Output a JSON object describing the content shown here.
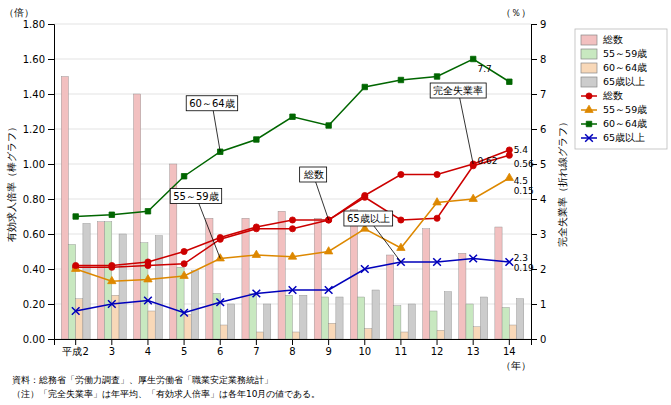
{
  "chart_data": {
    "type": "bar",
    "categories": [
      "平成2",
      "3",
      "4",
      "5",
      "6",
      "7",
      "8",
      "9",
      "10",
      "11",
      "12",
      "13",
      "14"
    ],
    "xlabel": "（年）",
    "ylabel": "有効求人倍率（棒グラフ）",
    "y2label": "完全失業率（折れ線グラフ）",
    "y_unit": "（倍）",
    "y2_unit": "（％）",
    "ylim": [
      0.0,
      1.8
    ],
    "yticks": [
      {
        "value": 0.0,
        "label": "0.00"
      },
      {
        "value": 0.2,
        "label": "0.20"
      },
      {
        "value": 0.4,
        "label": "0.40"
      },
      {
        "value": 0.6,
        "label": "0.60"
      },
      {
        "value": 0.8,
        "label": "0.80"
      },
      {
        "value": 1.0,
        "label": "1.00"
      },
      {
        "value": 1.2,
        "label": "1.20"
      },
      {
        "value": 1.4,
        "label": "1.40"
      },
      {
        "value": 1.6,
        "label": "1.60"
      },
      {
        "value": 1.8,
        "label": "1.80"
      }
    ],
    "y2lim": [
      0,
      9
    ],
    "y2ticks": [
      0,
      1,
      2,
      3,
      4,
      5,
      6,
      7,
      8,
      9
    ],
    "grid": true,
    "legend": "right",
    "series": [
      {
        "name": "総数",
        "type": "bar",
        "color": "#f2c0c0",
        "values": [
          1.5,
          0.67,
          1.4,
          1.0,
          0.69,
          0.69,
          0.73,
          0.69,
          0.74,
          0.48,
          0.63,
          0.49,
          0.64
        ]
      },
      {
        "name": "55～59歳",
        "type": "bar",
        "color": "#c8e8c0",
        "values": [
          0.54,
          0.67,
          0.55,
          0.41,
          0.26,
          0.26,
          0.25,
          0.24,
          0.24,
          0.19,
          0.16,
          0.2,
          0.18
        ]
      },
      {
        "name": "60～64歳",
        "type": "bar",
        "color": "#f8d8b8",
        "values": [
          0.23,
          0.25,
          0.16,
          0.14,
          0.08,
          0.04,
          0.04,
          0.09,
          0.06,
          0.04,
          0.05,
          0.07,
          0.08
        ]
      },
      {
        "name": "65歳以上",
        "type": "bar",
        "color": "#cccccc",
        "values": [
          0.66,
          0.6,
          0.59,
          0.39,
          0.2,
          0.2,
          0.25,
          0.24,
          0.28,
          0.2,
          0.27,
          0.24,
          0.23
        ]
      },
      {
        "name": "総数",
        "type": "line",
        "color": "#cc0000",
        "marker": "circle",
        "values": [
          0.41,
          0.41,
          0.42,
          0.43,
          0.57,
          0.63,
          0.63,
          0.68,
          0.81,
          0.68,
          0.69,
          0.99,
          1.05
        ]
      },
      {
        "name": "55～59歳",
        "type": "line",
        "color": "#dd8800",
        "marker": "triangle",
        "values": [
          0.4,
          0.33,
          0.34,
          0.36,
          0.46,
          0.48,
          0.47,
          0.5,
          0.63,
          0.52,
          0.78,
          0.8,
          0.92
        ]
      },
      {
        "name": "60～64歳",
        "type": "line",
        "color": "#006600",
        "marker": "square",
        "values": [
          0.7,
          0.71,
          0.73,
          0.93,
          1.07,
          1.14,
          1.27,
          1.22,
          1.44,
          1.48,
          1.5,
          1.6,
          1.47
        ]
      },
      {
        "name": "65歳以上",
        "type": "line",
        "color": "#0000bb",
        "marker": "x",
        "values": [
          0.16,
          0.2,
          0.22,
          0.15,
          0.21,
          0.26,
          0.28,
          0.28,
          0.4,
          0.44,
          0.44,
          0.46,
          0.44
        ]
      },
      {
        "type": "line",
        "axis": "y2",
        "color": "#cc0000",
        "marker": "circle",
        "values": [
          2.1,
          2.1,
          2.2,
          2.5,
          2.9,
          3.2,
          3.4,
          3.4,
          4.1,
          4.7,
          4.7,
          5.0,
          5.4
        ]
      }
    ],
    "annotations": [
      {
        "text": "60～64歳",
        "x": "6",
        "y": 1.07,
        "arrow": true
      },
      {
        "text": "55～59歳",
        "x": "6",
        "y": 0.46,
        "arrow": true
      },
      {
        "text": "総数",
        "x": "9",
        "y": 0.68,
        "arrow": true
      },
      {
        "text": "65歳以上",
        "x": "11",
        "y": 0.44,
        "arrow": true
      },
      {
        "text": "完全失業率",
        "x": "13",
        "y": 5.0,
        "axis": "y2",
        "arrow": true
      },
      {
        "text": "5.4",
        "x": "14",
        "y": 5.4,
        "axis": "y2"
      },
      {
        "text": "4.5",
        "x": "14",
        "y": 4.5,
        "axis": "y2"
      },
      {
        "text": "7.7",
        "x": "13",
        "y": 7.7,
        "axis": "y2"
      },
      {
        "text": "2.3",
        "x": "14",
        "y": 2.3,
        "axis": "y2"
      },
      {
        "text": "0.62",
        "x": "13",
        "y": 0.99
      },
      {
        "text": "0.56",
        "x": "14",
        "y": 1.05
      },
      {
        "text": "0.19",
        "x": "14",
        "y": 0.44
      },
      {
        "text": "0.15",
        "x": "14",
        "y": 0.92
      }
    ],
    "notes": [
      "資料：総務省「労働力調査」、厚生労働省「職業安定業務統計」",
      "（注）「完全失業率」は年平均、「有効求人倍率」は各年10月の値である。"
    ]
  }
}
